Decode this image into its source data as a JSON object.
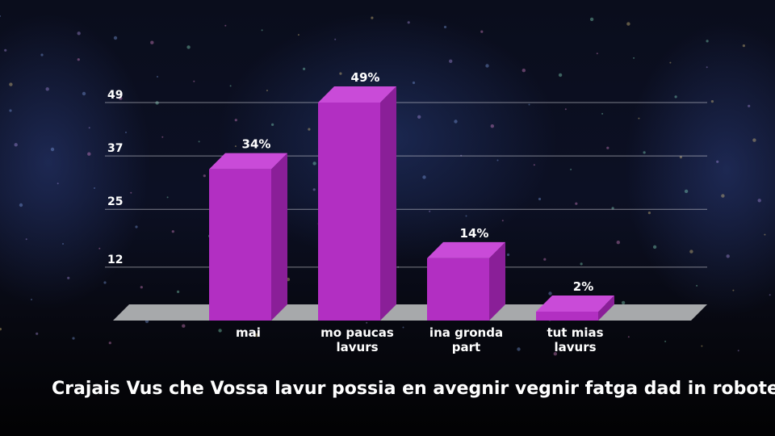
{
  "question": "Crajais Vus che Vossa lavur possia en avegnir vegnir fatga dad in roboter?",
  "colors": {
    "bar_front": "#b22fc2",
    "bar_side": "#8a1f98",
    "bar_top": "#c94bd8",
    "floor": "#a7a9ab",
    "grid": "#d8d8e0"
  },
  "chart_data": {
    "type": "bar",
    "title": "",
    "xlabel": "",
    "ylabel": "",
    "categories": [
      [
        "mai"
      ],
      [
        "mo paucas",
        "lavurs"
      ],
      [
        "ina gronda",
        "part"
      ],
      [
        "tut mias",
        "lavurs"
      ]
    ],
    "values": [
      34,
      49,
      14,
      2
    ],
    "value_labels": [
      "34%",
      "49%",
      "14%",
      "2%"
    ],
    "y_ticks": [
      12,
      25,
      37,
      49
    ],
    "y_tick_labels": [
      "12",
      "25",
      "37",
      "49"
    ],
    "ylim": [
      0,
      49
    ],
    "grid": true,
    "legend": "none"
  }
}
